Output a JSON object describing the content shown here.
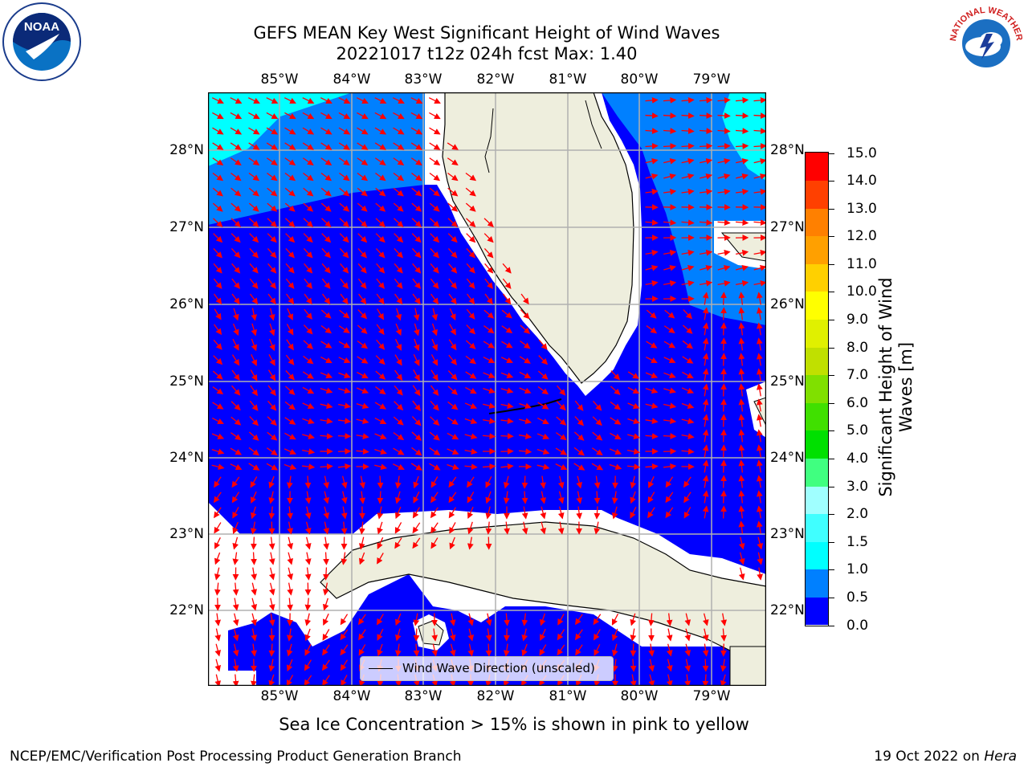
{
  "title": {
    "line1": "GEFS MEAN Key West Significant Height of Wind Waves",
    "line2": "20221017 t12z 024h fcst   Max: 1.40"
  },
  "map": {
    "lon_ticks": [
      "85°W",
      "84°W",
      "83°W",
      "82°W",
      "81°W",
      "80°W",
      "79°W"
    ],
    "lat_ticks": [
      "28°N",
      "27°N",
      "26°N",
      "25°N",
      "24°N",
      "23°N",
      "22°N"
    ],
    "colors": {
      "band_0_0.5": "#0000ff",
      "band_0.5_1.0": "#0080ff",
      "band_1.0_1.5": "#00ffff",
      "land": "#eeeedd",
      "gridlines": "#b0b0b0",
      "arrows": "#ff0000"
    },
    "legend_label": "Wind Wave Direction (unscaled)"
  },
  "colorbar": {
    "title": "Significant Height of Wind Waves [m]",
    "ticks": [
      "0.0",
      "0.5",
      "1.0",
      "1.5",
      "2.0",
      "3.0",
      "4.0",
      "5.0",
      "6.0",
      "7.0",
      "8.0",
      "9.0",
      "10.0",
      "11.0",
      "12.0",
      "13.0",
      "14.0",
      "15.0"
    ],
    "colors": [
      "#0000ff",
      "#0080ff",
      "#00ffff",
      "#40ffff",
      "#a0ffff",
      "#40ff80",
      "#00e000",
      "#40e000",
      "#80e000",
      "#c0e000",
      "#e0f000",
      "#ffff00",
      "#ffd000",
      "#ffa000",
      "#ff8000",
      "#ff4000",
      "#ff0000"
    ]
  },
  "ice_note": "Sea Ice Concentration > 15% is shown in pink to yellow",
  "footer": {
    "left": "NCEP/EMC/Verification Post Processing Product Generation Branch",
    "right_date": "19 Oct 2022 on ",
    "right_host": "Hera"
  },
  "logos": {
    "left": "noaa-logo",
    "left_text": "NOAA",
    "right": "nws-logo",
    "right_text": "NATIONAL WEATHER SERVICE"
  }
}
